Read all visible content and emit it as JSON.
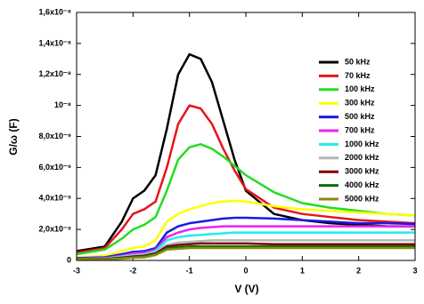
{
  "chart_data": {
    "type": "line",
    "xlabel": "V (V)",
    "ylabel": "G/ω (F)",
    "xlim": [
      -3,
      3
    ],
    "ylim": [
      0,
      1.6e-08
    ],
    "xticks": [
      -3,
      -2,
      -1,
      0,
      1,
      2,
      3
    ],
    "yticks": [
      0,
      {
        "value": 2e-09,
        "label": "2,0x10⁻⁹"
      },
      {
        "value": 4e-09,
        "label": "4,0x10⁻⁹"
      },
      {
        "value": 6e-09,
        "label": "6,0x10⁻⁹"
      },
      {
        "value": 8e-09,
        "label": "8,0x10⁻⁹"
      },
      {
        "value": 1e-08,
        "label": "10⁻⁸"
      },
      {
        "value": 1.2e-08,
        "label": "1,2x10⁻⁸"
      },
      {
        "value": 1.4e-08,
        "label": "1,4x10⁻⁸"
      },
      {
        "value": 1.6e-08,
        "label": "1,6x10⁻⁸"
      }
    ],
    "legend_position": "upper right",
    "x": [
      -3,
      -2.5,
      -2.2,
      -2,
      -1.8,
      -1.6,
      -1.4,
      -1.2,
      -1,
      -0.8,
      -0.6,
      -0.4,
      -0.2,
      0,
      0.5,
      1,
      1.5,
      2,
      2.5,
      3
    ],
    "series": [
      {
        "name": "50 kHz",
        "color": "#000000",
        "values": [
          6e-10,
          9e-10,
          2.5e-09,
          4e-09,
          4.5e-09,
          5.5e-09,
          8.5e-09,
          1.2e-08,
          1.33e-08,
          1.3e-08,
          1.15e-08,
          9e-09,
          6.5e-09,
          4.5e-09,
          3e-09,
          2.6e-09,
          2.4e-09,
          2.3e-09,
          2.2e-09,
          2.2e-09
        ]
      },
      {
        "name": "70 kHz",
        "color": "#e8141b",
        "values": [
          5e-10,
          8e-10,
          2e-09,
          3e-09,
          3.3e-09,
          3.8e-09,
          6e-09,
          8.8e-09,
          1e-08,
          9.8e-09,
          8.8e-09,
          7.2e-09,
          5.8e-09,
          4.6e-09,
          3.4e-09,
          3e-09,
          2.8e-09,
          2.6e-09,
          2.5e-09,
          2.4e-09
        ]
      },
      {
        "name": "100 kHz",
        "color": "#22dd22",
        "values": [
          4e-10,
          7e-10,
          1.4e-09,
          2e-09,
          2.3e-09,
          2.8e-09,
          4.5e-09,
          6.5e-09,
          7.3e-09,
          7.5e-09,
          7.2e-09,
          6.7e-09,
          6.1e-09,
          5.5e-09,
          4.4e-09,
          3.7e-09,
          3.4e-09,
          3.2e-09,
          3e-09,
          2.9e-09
        ]
      },
      {
        "name": "300 kHz",
        "color": "#ffff00",
        "values": [
          2e-10,
          3e-10,
          6e-10,
          8e-10,
          9e-10,
          1.3e-09,
          2.5e-09,
          3e-09,
          3.3e-09,
          3.5e-09,
          3.7e-09,
          3.8e-09,
          3.85e-09,
          3.8e-09,
          3.5e-09,
          3.3e-09,
          3.2e-09,
          3.1e-09,
          3e-09,
          2.9e-09
        ]
      },
      {
        "name": "500 kHz",
        "color": "#1a1ae0",
        "values": [
          1.5e-10,
          2e-10,
          4e-10,
          5.5e-10,
          6e-10,
          8e-10,
          1.8e-09,
          2.2e-09,
          2.4e-09,
          2.5e-09,
          2.6e-09,
          2.7e-09,
          2.75e-09,
          2.75e-09,
          2.7e-09,
          2.6e-09,
          2.5e-09,
          2.4e-09,
          2.4e-09,
          2.35e-09
        ]
      },
      {
        "name": "700 kHz",
        "color": "#ee22ee",
        "values": [
          1e-10,
          1.5e-10,
          3e-10,
          4.5e-10,
          5e-10,
          7e-10,
          1.5e-09,
          1.8e-09,
          2e-09,
          2.1e-09,
          2.15e-09,
          2.2e-09,
          2.2e-09,
          2.2e-09,
          2.2e-09,
          2.2e-09,
          2.2e-09,
          2.2e-09,
          2.2e-09,
          2.2e-09
        ]
      },
      {
        "name": "1000 kHz",
        "color": "#22eeee",
        "values": [
          1e-10,
          1.2e-10,
          2.5e-10,
          3.5e-10,
          4e-10,
          6e-10,
          1.3e-09,
          1.5e-09,
          1.6e-09,
          1.65e-09,
          1.7e-09,
          1.75e-09,
          1.8e-09,
          1.8e-09,
          1.8e-09,
          1.8e-09,
          1.8e-09,
          1.8e-09,
          1.8e-09,
          1.8e-09
        ]
      },
      {
        "name": "2000 kHz",
        "color": "#b4b4b4",
        "values": [
          8e-11,
          1e-10,
          2e-10,
          3e-10,
          3.5e-10,
          5e-10,
          1e-09,
          1.15e-09,
          1.2e-09,
          1.25e-09,
          1.3e-09,
          1.3e-09,
          1.3e-09,
          1.3e-09,
          1.3e-09,
          1.3e-09,
          1.3e-09,
          1.3e-09,
          1.3e-09,
          1.3e-09
        ]
      },
      {
        "name": "3000 kHz",
        "color": "#7a0000",
        "values": [
          7e-11,
          9e-11,
          1.8e-10,
          2.5e-10,
          3e-10,
          4.5e-10,
          9e-10,
          1e-09,
          1.05e-09,
          1.1e-09,
          1.1e-09,
          1.1e-09,
          1.1e-09,
          1.1e-09,
          1.05e-09,
          1.05e-09,
          1.05e-09,
          1.05e-09,
          1.05e-09,
          1.05e-09
        ]
      },
      {
        "name": "4000 kHz",
        "color": "#0a6e0a",
        "values": [
          5e-11,
          7e-11,
          1.5e-10,
          2e-10,
          2.5e-10,
          4e-10,
          8e-10,
          8.5e-10,
          9e-10,
          9e-10,
          9e-10,
          9e-10,
          9e-10,
          9e-10,
          9e-10,
          9e-10,
          9e-10,
          9e-10,
          9e-10,
          9e-10
        ]
      },
      {
        "name": "5000 kHz",
        "color": "#8a8a10",
        "values": [
          4e-11,
          6e-11,
          1.2e-10,
          1.8e-10,
          2e-10,
          3.5e-10,
          7e-10,
          7.5e-10,
          8e-10,
          8e-10,
          8e-10,
          8e-10,
          8e-10,
          8e-10,
          8e-10,
          8e-10,
          8e-10,
          8e-10,
          8e-10,
          8e-10
        ]
      }
    ]
  }
}
